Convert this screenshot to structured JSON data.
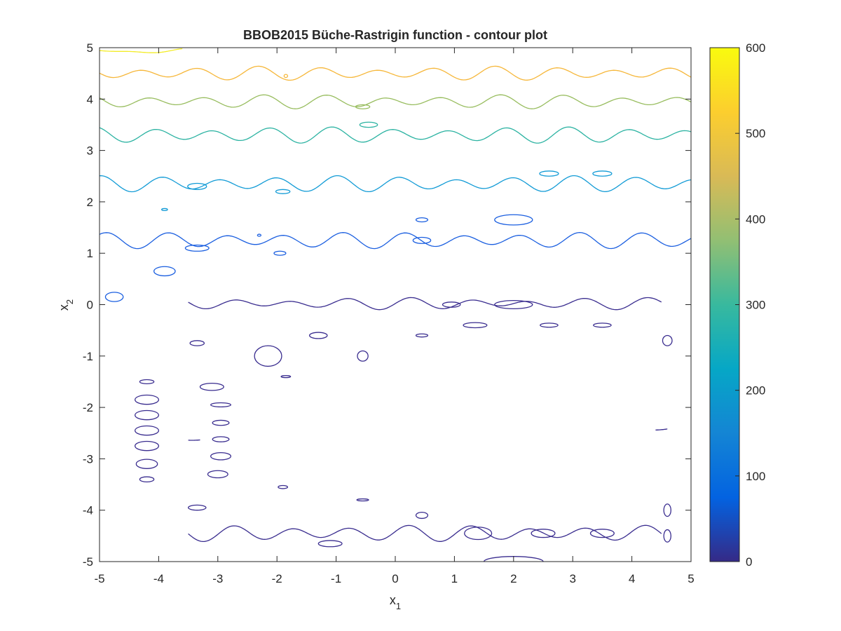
{
  "chart_data": {
    "type": "contour",
    "title": "BBOB2015  Büche-Rastrigin function - contour plot",
    "xlabel": {
      "base": "x",
      "sub": "1"
    },
    "ylabel": {
      "base": "x",
      "sub": "2"
    },
    "xlim": [
      -5,
      5
    ],
    "ylim": [
      -5,
      5
    ],
    "xticks": [
      -5,
      -4,
      -3,
      -2,
      -1,
      0,
      1,
      2,
      3,
      4,
      5
    ],
    "yticks": [
      -5,
      -4,
      -3,
      -2,
      -1,
      0,
      1,
      2,
      3,
      4,
      5
    ],
    "grid": false,
    "colorbar": {
      "range": [
        0,
        600
      ],
      "ticks": [
        0,
        100,
        200,
        300,
        400,
        500,
        600
      ],
      "colormap": "parula",
      "stops": [
        "#352a87",
        "#0363e1",
        "#1485d4",
        "#06a7c6",
        "#38b99e",
        "#92bf73",
        "#d9ba56",
        "#fcce2e",
        "#f9fb0e"
      ]
    },
    "contour_levels": [
      {
        "level": 50,
        "color": "#3a2d8f",
        "bands": [
          {
            "x_from": -3.5,
            "x_to": 4.5,
            "y_mean": 0.02,
            "amp": 0.08
          },
          {
            "x_from": -3.5,
            "x_to": 4.5,
            "y_mean": -4.45,
            "amp": 0.12
          },
          {
            "x_from": -3.5,
            "x_to": -3.3,
            "y_mean": -2.6,
            "amp": 0.0
          },
          {
            "x_from": 4.4,
            "x_to": 4.6,
            "y_mean": -2.4,
            "amp": 0.0
          }
        ],
        "islands": [
          {
            "cx": -4.2,
            "cy": -1.5,
            "rx": 0.12,
            "ry": 0.04
          },
          {
            "cx": -4.2,
            "cy": -1.85,
            "rx": 0.2,
            "ry": 0.09
          },
          {
            "cx": -4.2,
            "cy": -2.15,
            "rx": 0.2,
            "ry": 0.09
          },
          {
            "cx": -4.2,
            "cy": -2.45,
            "rx": 0.2,
            "ry": 0.09
          },
          {
            "cx": -4.2,
            "cy": -2.75,
            "rx": 0.2,
            "ry": 0.09
          },
          {
            "cx": -4.2,
            "cy": -3.1,
            "rx": 0.18,
            "ry": 0.09
          },
          {
            "cx": -4.2,
            "cy": -3.4,
            "rx": 0.12,
            "ry": 0.05
          },
          {
            "cx": -3.35,
            "cy": -0.75,
            "rx": 0.12,
            "ry": 0.05
          },
          {
            "cx": -3.1,
            "cy": -1.6,
            "rx": 0.2,
            "ry": 0.07
          },
          {
            "cx": -2.95,
            "cy": -1.95,
            "rx": 0.17,
            "ry": 0.04
          },
          {
            "cx": -2.95,
            "cy": -2.3,
            "rx": 0.14,
            "ry": 0.05
          },
          {
            "cx": -2.95,
            "cy": -2.62,
            "rx": 0.14,
            "ry": 0.05
          },
          {
            "cx": -2.95,
            "cy": -2.95,
            "rx": 0.17,
            "ry": 0.07
          },
          {
            "cx": -3.0,
            "cy": -3.3,
            "rx": 0.17,
            "ry": 0.07
          },
          {
            "cx": -3.35,
            "cy": -3.95,
            "rx": 0.15,
            "ry": 0.05
          },
          {
            "cx": -2.15,
            "cy": -1.0,
            "rx": 0.23,
            "ry": 0.2
          },
          {
            "cx": -1.85,
            "cy": -1.4,
            "rx": 0.08,
            "ry": 0.02
          },
          {
            "cx": -1.9,
            "cy": -3.55,
            "rx": 0.08,
            "ry": 0.03
          },
          {
            "cx": -0.55,
            "cy": -1.0,
            "rx": 0.09,
            "ry": 0.1
          },
          {
            "cx": -0.55,
            "cy": -3.8,
            "rx": 0.1,
            "ry": 0.02
          },
          {
            "cx": -1.3,
            "cy": -0.6,
            "rx": 0.15,
            "ry": 0.06
          },
          {
            "cx": 0.45,
            "cy": -0.6,
            "rx": 0.1,
            "ry": 0.03
          },
          {
            "cx": 0.45,
            "cy": -4.1,
            "rx": 0.1,
            "ry": 0.06
          },
          {
            "cx": 0.95,
            "cy": 0.0,
            "rx": 0.15,
            "ry": 0.05
          },
          {
            "cx": 2.0,
            "cy": 0.0,
            "rx": 0.32,
            "ry": 0.08
          },
          {
            "cx": 2.6,
            "cy": -0.4,
            "rx": 0.15,
            "ry": 0.04
          },
          {
            "cx": 3.5,
            "cy": -0.4,
            "rx": 0.15,
            "ry": 0.04
          },
          {
            "cx": 1.35,
            "cy": -0.4,
            "rx": 0.2,
            "ry": 0.05
          },
          {
            "cx": 1.4,
            "cy": -4.45,
            "rx": 0.23,
            "ry": 0.12
          },
          {
            "cx": 2.5,
            "cy": -4.45,
            "rx": 0.2,
            "ry": 0.08
          },
          {
            "cx": 3.5,
            "cy": -4.45,
            "rx": 0.2,
            "ry": 0.08
          },
          {
            "cx": -1.1,
            "cy": -4.65,
            "rx": 0.2,
            "ry": 0.06
          },
          {
            "cx": 2.0,
            "cy": -5.0,
            "rx": 0.5,
            "ry": 0.1
          },
          {
            "cx": 4.6,
            "cy": -0.7,
            "rx": 0.08,
            "ry": 0.1
          },
          {
            "cx": 4.6,
            "cy": -4.0,
            "rx": 0.06,
            "ry": 0.12
          },
          {
            "cx": 4.6,
            "cy": -4.5,
            "rx": 0.06,
            "ry": 0.12
          }
        ]
      },
      {
        "level": 150,
        "color": "#1b5fe0",
        "bands": [
          {
            "x_from": -5.0,
            "x_to": 5.0,
            "y_mean": 1.25,
            "amp": 0.12
          }
        ],
        "islands": [
          {
            "cx": -4.75,
            "cy": 0.15,
            "rx": 0.15,
            "ry": 0.09
          },
          {
            "cx": -3.9,
            "cy": 0.65,
            "rx": 0.18,
            "ry": 0.09
          },
          {
            "cx": -3.35,
            "cy": 1.1,
            "rx": 0.2,
            "ry": 0.06
          },
          {
            "cx": -1.95,
            "cy": 1.0,
            "rx": 0.1,
            "ry": 0.04
          },
          {
            "cx": 0.45,
            "cy": 1.65,
            "rx": 0.1,
            "ry": 0.04
          },
          {
            "cx": 0.45,
            "cy": 1.25,
            "rx": 0.15,
            "ry": 0.06
          },
          {
            "cx": 2.0,
            "cy": 1.65,
            "rx": 0.32,
            "ry": 0.1
          },
          {
            "cx": -2.3,
            "cy": 1.35,
            "rx": 0.03,
            "ry": 0.02
          }
        ]
      },
      {
        "level": 250,
        "color": "#129bd6",
        "bands": [
          {
            "x_from": -5.0,
            "x_to": 5.0,
            "y_mean": 2.35,
            "amp": 0.12
          }
        ],
        "islands": [
          {
            "cx": -3.35,
            "cy": 2.3,
            "rx": 0.16,
            "ry": 0.06
          },
          {
            "cx": -1.9,
            "cy": 2.2,
            "rx": 0.12,
            "ry": 0.04
          },
          {
            "cx": -3.9,
            "cy": 1.85,
            "rx": 0.05,
            "ry": 0.02
          },
          {
            "cx": 2.6,
            "cy": 2.55,
            "rx": 0.16,
            "ry": 0.05
          },
          {
            "cx": 3.5,
            "cy": 2.55,
            "rx": 0.16,
            "ry": 0.05
          }
        ]
      },
      {
        "level": 350,
        "color": "#2cb3a2",
        "bands": [
          {
            "x_from": -5.0,
            "x_to": 5.0,
            "y_mean": 3.3,
            "amp": 0.12
          }
        ],
        "islands": [
          {
            "cx": -0.45,
            "cy": 3.5,
            "rx": 0.15,
            "ry": 0.05
          }
        ]
      },
      {
        "level": 400,
        "color": "#98bd5f",
        "bands": [
          {
            "x_from": -5.0,
            "x_to": 5.0,
            "y_mean": 3.95,
            "amp": 0.1
          }
        ],
        "islands": [
          {
            "cx": -0.55,
            "cy": 3.85,
            "rx": 0.12,
            "ry": 0.04
          }
        ]
      },
      {
        "level": 500,
        "color": "#f6b73a",
        "bands": [
          {
            "x_from": -5.0,
            "x_to": 5.0,
            "y_mean": 4.5,
            "amp": 0.1
          }
        ],
        "islands": [
          {
            "cx": -1.85,
            "cy": 4.45,
            "rx": 0.03,
            "ry": 0.03
          }
        ]
      },
      {
        "level": 600,
        "color": "#f3ec28",
        "bands": [
          {
            "x_from": -5.0,
            "x_to": -3.6,
            "y_mean": 4.93,
            "amp": 0.03
          }
        ],
        "islands": []
      }
    ]
  }
}
